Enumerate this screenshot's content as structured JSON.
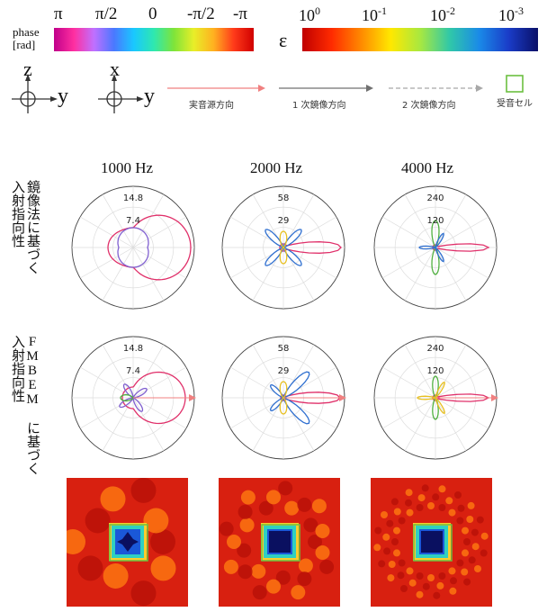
{
  "legend": {
    "phase": {
      "label_line1": "phase",
      "label_line2": "[rad]",
      "ticks": [
        "π",
        "π/2",
        "0",
        "-π/2",
        "-π"
      ],
      "gradient": [
        "#c0008a",
        "#ff2fa0",
        "#c070ff",
        "#4a78ff",
        "#19c8ff",
        "#2ee8b0",
        "#7ee43a",
        "#e8ee28",
        "#ffb020",
        "#ff3a1a",
        "#d00000"
      ]
    },
    "epsilon": {
      "symbol": "ε",
      "ticks_base": [
        "10",
        "10",
        "10",
        "10"
      ],
      "ticks_exp": [
        "0",
        "-1",
        "-2",
        "-3"
      ],
      "gradient": [
        "#c00000",
        "#ff2b00",
        "#ff8a00",
        "#ffe800",
        "#a8e840",
        "#30c8a8",
        "#1a8ae8",
        "#1a3cc8",
        "#0a1068"
      ]
    },
    "axis_y_label": "y",
    "axis_frame1_up": "z",
    "axis_frame2_up": "x",
    "arrows": [
      {
        "label": "実音源方向",
        "color": "#f08080",
        "style": "solid"
      },
      {
        "label": "1 次鏡像方向",
        "color": "#707070",
        "style": "solid"
      },
      {
        "label": "2 次鏡像方向",
        "color": "#a8a8a8",
        "style": "dashed"
      }
    ],
    "cell_label": "受音セル",
    "cell_color": "#6cc040"
  },
  "frequencies": [
    "1000 Hz",
    "2000 Hz",
    "4000 Hz"
  ],
  "row_labels": [
    {
      "line1": "鏡像法に基づく",
      "line2": "入射指向性"
    },
    {
      "line1": "FMBEM に基づく",
      "line2": "入射指向性"
    }
  ],
  "polar_rings": [
    {
      "outer": "14.8",
      "inner": "7.4"
    },
    {
      "outer": "58",
      "inner": "29"
    },
    {
      "outer": "240",
      "inner": "120"
    }
  ]
}
